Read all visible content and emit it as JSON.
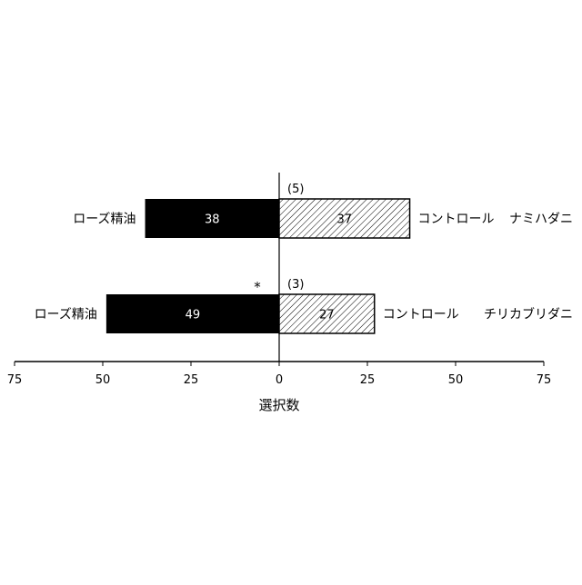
{
  "chart_data": {
    "type": "bar",
    "orientation": "horizontal-diverging",
    "xlabel": "選択数",
    "xlim": [
      -75,
      75
    ],
    "xticks": [
      -75,
      -50,
      -25,
      0,
      25,
      50,
      75
    ],
    "xtick_labels": [
      "75",
      "50",
      "25",
      "0",
      "25",
      "50",
      "75"
    ],
    "grid": false,
    "groups": [
      {
        "species": "ナミハダニ",
        "left_label": "ローズ精油",
        "right_label": "コントロール",
        "left_value": 38,
        "right_value": 37,
        "no_choice": "(5)",
        "significance": ""
      },
      {
        "species": "チリカブリダニ",
        "left_label": "ローズ精油",
        "right_label": "コントロール",
        "left_value": 49,
        "right_value": 27,
        "no_choice": "(3)",
        "significance": "*"
      }
    ],
    "colors": {
      "left": "#000000",
      "right": "hatched"
    }
  }
}
